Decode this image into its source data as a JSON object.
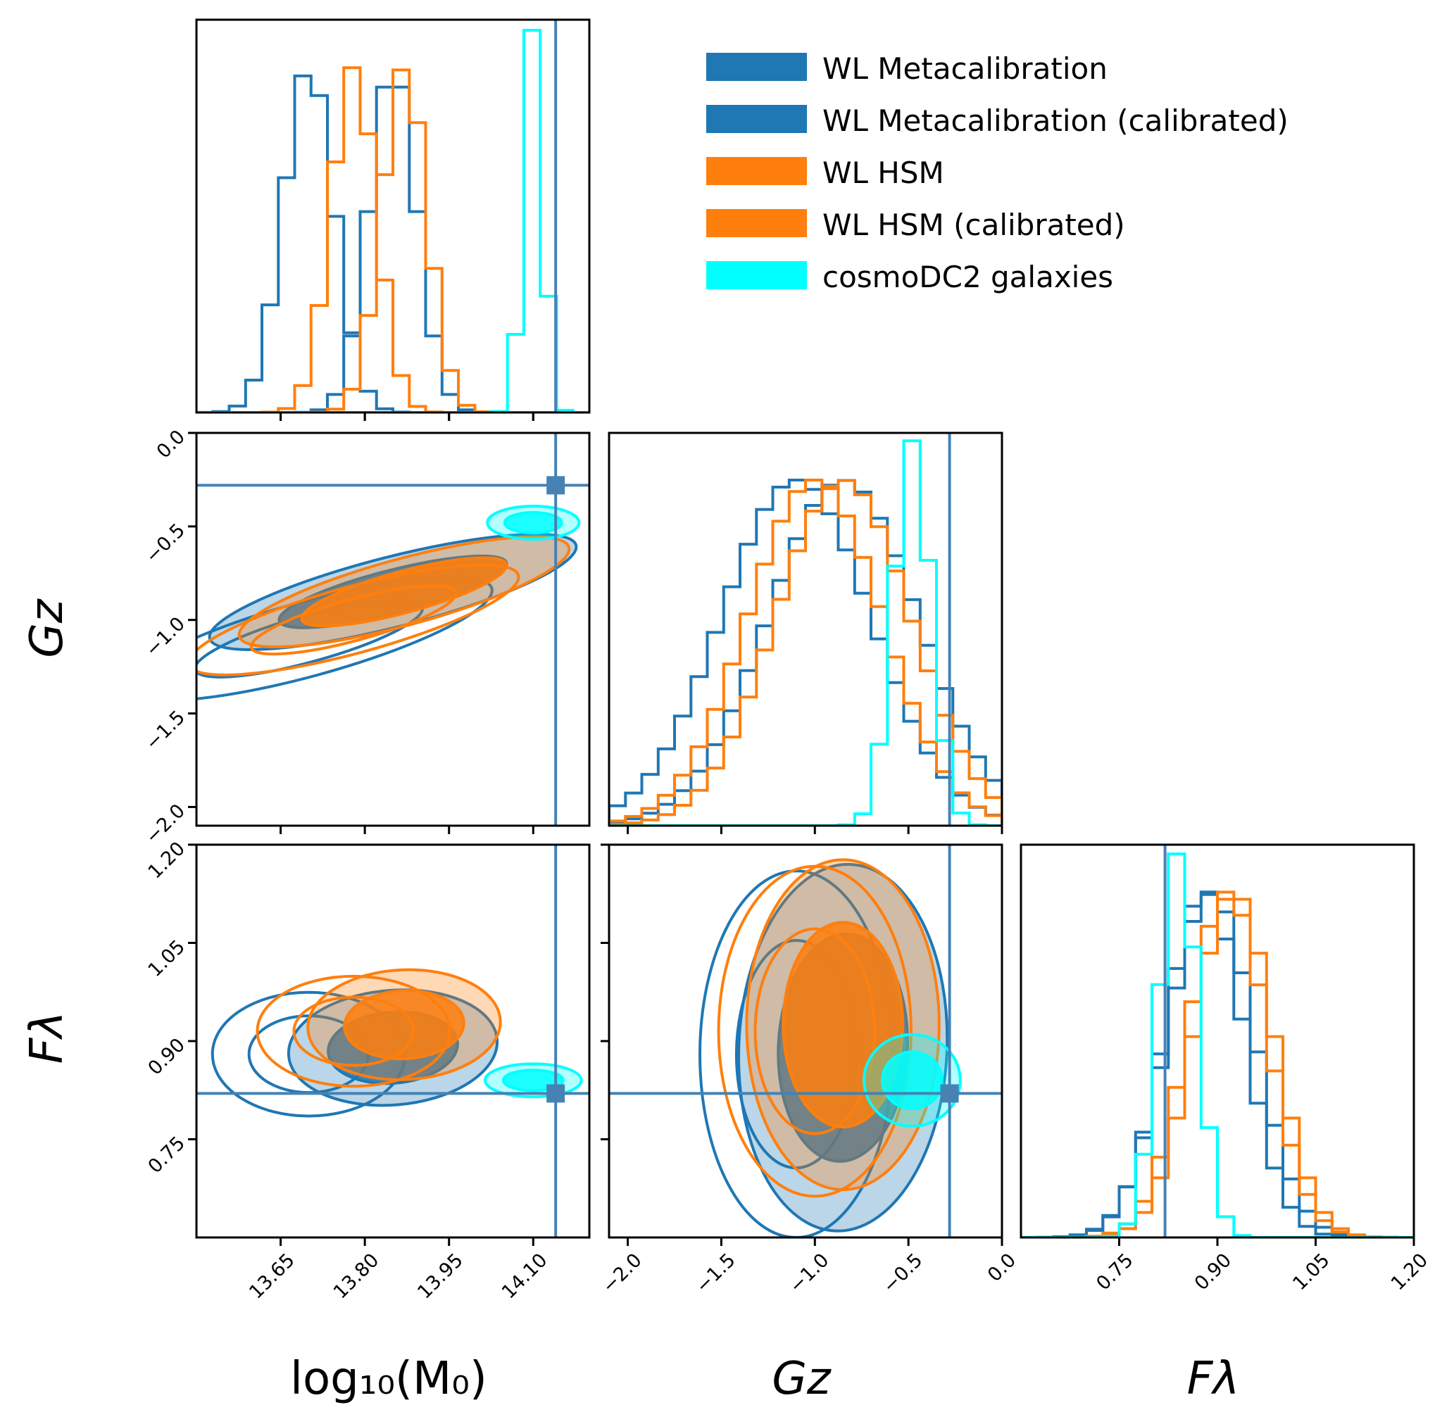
{
  "colors": {
    "metacal": "#1f77b4",
    "metacal_cal": "#1f77b4",
    "hsm": "#ff7f0e",
    "hsm_cal": "#ff7f0e",
    "cosmo": "#00ffff",
    "truth": "#4682b4"
  },
  "axis_titles": {
    "logM0": "log₁₀(M₀)",
    "Gz": "Gz",
    "Flambda": "Fλ"
  },
  "chart_data": {
    "type": "corner",
    "parameters": [
      "log10(M0)",
      "Gz",
      "Flambda"
    ],
    "ranges": {
      "logM0": [
        13.5,
        14.2
      ],
      "Gz": [
        -2.1,
        0.0
      ],
      "Flambda": [
        0.6,
        1.2
      ]
    },
    "ticks": {
      "logM0": [
        "13.65",
        "13.80",
        "13.95",
        "14.10"
      ],
      "Gz": [
        "−2.0",
        "−1.5",
        "−1.0",
        "−0.5",
        "0.0"
      ],
      "Flambda": [
        "0.75",
        "0.90",
        "1.05",
        "1.20"
      ]
    },
    "tick_values": {
      "logM0": [
        13.65,
        13.8,
        13.95,
        14.1
      ],
      "Gz": [
        -2.0,
        -1.5,
        -1.0,
        -0.5,
        0.0
      ],
      "Flambda": [
        0.75,
        0.9,
        1.05,
        1.2
      ]
    },
    "truth": {
      "logM0": 14.14,
      "Gz": -0.28,
      "Flambda": 0.82
    },
    "legend": [
      {
        "label": "WL Metacalibration",
        "color": "#1f77b4"
      },
      {
        "label": "WL Metacalibration (calibrated)",
        "color": "#1f77b4"
      },
      {
        "label": "WL HSM",
        "color": "#ff7f0e"
      },
      {
        "label": "WL HSM (calibrated)",
        "color": "#ff7f0e"
      },
      {
        "label": "cosmoDC2 galaxies",
        "color": "#00ffff"
      }
    ],
    "series": [
      {
        "key": "metacal",
        "filled": false,
        "mean": {
          "logM0": 13.7,
          "Gz": -1.1,
          "Flambda": 0.88
        },
        "sd": {
          "logM0": 0.045,
          "Gz": 0.4,
          "Flambda": 0.06
        },
        "corr_m_g": 0.78,
        "corr_m_f": 0.0,
        "corr_g_f": 0.0
      },
      {
        "key": "metacal_cal",
        "filled": true,
        "mean": {
          "logM0": 13.85,
          "Gz": -0.85,
          "Flambda": 0.89
        },
        "sd": {
          "logM0": 0.042,
          "Gz": 0.4,
          "Flambda": 0.065
        },
        "corr_m_g": 0.78,
        "corr_m_f": 0.1,
        "corr_g_f": 0.05
      },
      {
        "key": "hsm",
        "filled": false,
        "mean": {
          "logM0": 13.78,
          "Gz": -1.0,
          "Flambda": 0.915
        },
        "sd": {
          "logM0": 0.04,
          "Gz": 0.36,
          "Flambda": 0.06
        },
        "corr_m_g": 0.78,
        "corr_m_f": 0.0,
        "corr_g_f": 0.0
      },
      {
        "key": "hsm_cal",
        "filled": true,
        "mean": {
          "logM0": 13.87,
          "Gz": -0.85,
          "Flambda": 0.925
        },
        "sd": {
          "logM0": 0.04,
          "Gz": 0.36,
          "Flambda": 0.06
        },
        "corr_m_g": 0.78,
        "corr_m_f": 0.05,
        "corr_g_f": 0.0
      },
      {
        "key": "cosmo",
        "filled": true,
        "mean": {
          "logM0": 14.1,
          "Gz": -0.48,
          "Flambda": 0.84
        },
        "sd": {
          "logM0": 0.012,
          "Gz": 0.1,
          "Flambda": 0.03
        },
        "corr_m_g": 0.0,
        "corr_m_f": 0.0,
        "corr_g_f": 0.0
      }
    ]
  }
}
